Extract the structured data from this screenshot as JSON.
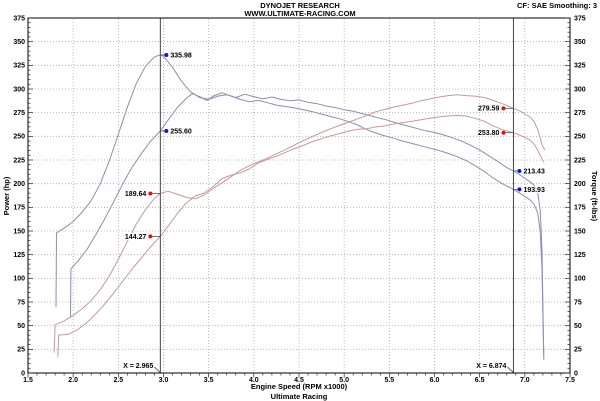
{
  "header": {
    "title_line1": "DYNOJET RESEARCH",
    "title_line2": "WWW.ULTIMATE-RACING.COM",
    "correction_info": "CF: SAE  Smoothing: 3"
  },
  "footer": {
    "brand": "Ultimate Racing"
  },
  "chart_data": {
    "type": "line",
    "xlabel": "Engine Speed (RPM x1000)",
    "ylabel_left": "Power (hp)",
    "ylabel_right": "Torque (ft-lbs)",
    "xlim": [
      1.5,
      7.5
    ],
    "ylim": [
      0,
      375
    ],
    "xtick_step": 0.5,
    "ytick_step": 25,
    "x_minor_step": 0.1,
    "y_minor_step": 5,
    "grid": true,
    "colors": {
      "torque_curve": "#8a8eb2",
      "power_curve": "#c29b97",
      "torque_marker": "#1414cc",
      "power_marker": "#dd1111",
      "grid": "#aaaaaa",
      "cursor": "#444444",
      "spine": "#000000"
    },
    "cursors": [
      {
        "x": 2.965,
        "label": "X = 2.965"
      },
      {
        "x": 6.874,
        "label": "X = 6.874"
      }
    ],
    "markers": [
      {
        "x": 2.965,
        "value": 335.98,
        "label": "335.98",
        "kind": "torque",
        "side": "right"
      },
      {
        "x": 2.965,
        "value": 255.6,
        "label": "255.60",
        "kind": "torque",
        "side": "right"
      },
      {
        "x": 2.965,
        "value": 189.64,
        "label": "189.64",
        "kind": "power",
        "side": "left"
      },
      {
        "x": 2.965,
        "value": 144.27,
        "label": "144.27",
        "kind": "power",
        "side": "left"
      },
      {
        "x": 6.874,
        "value": 279.59,
        "label": "279.59",
        "kind": "power",
        "side": "left"
      },
      {
        "x": 6.874,
        "value": 253.8,
        "label": "253.80",
        "kind": "power",
        "side": "left"
      },
      {
        "x": 6.874,
        "value": 213.43,
        "label": "213.43",
        "kind": "torque",
        "side": "right"
      },
      {
        "x": 6.874,
        "value": 193.93,
        "label": "193.93",
        "kind": "torque",
        "side": "right"
      }
    ],
    "series": [
      {
        "name": "torque-run1",
        "kind": "torque",
        "points": [
          [
            1.81,
            70
          ],
          [
            1.815,
            148
          ],
          [
            1.9,
            153
          ],
          [
            2.0,
            160
          ],
          [
            2.1,
            170
          ],
          [
            2.2,
            182
          ],
          [
            2.3,
            200
          ],
          [
            2.4,
            224
          ],
          [
            2.5,
            252
          ],
          [
            2.6,
            281
          ],
          [
            2.7,
            306
          ],
          [
            2.8,
            324
          ],
          [
            2.9,
            334
          ],
          [
            2.965,
            335.98
          ],
          [
            3.0,
            334.5
          ],
          [
            3.1,
            323
          ],
          [
            3.2,
            308
          ],
          [
            3.3,
            297
          ],
          [
            3.4,
            291
          ],
          [
            3.5,
            289
          ],
          [
            3.6,
            292.5
          ],
          [
            3.7,
            294
          ],
          [
            3.8,
            291
          ],
          [
            3.9,
            294.5
          ],
          [
            4.0,
            292
          ],
          [
            4.1,
            289.5
          ],
          [
            4.2,
            291.5
          ],
          [
            4.3,
            289
          ],
          [
            4.4,
            287.5
          ],
          [
            4.5,
            288.5
          ],
          [
            4.6,
            286
          ],
          [
            4.7,
            284.5
          ],
          [
            4.8,
            282
          ],
          [
            4.9,
            280.5
          ],
          [
            5.0,
            278
          ],
          [
            5.1,
            276.5
          ],
          [
            5.2,
            274
          ],
          [
            5.3,
            271.5
          ],
          [
            5.4,
            269
          ],
          [
            5.5,
            266.5
          ],
          [
            5.6,
            263.5
          ],
          [
            5.7,
            261
          ],
          [
            5.8,
            258.5
          ],
          [
            5.9,
            256
          ],
          [
            6.0,
            254
          ],
          [
            6.1,
            251.5
          ],
          [
            6.2,
            248.5
          ],
          [
            6.3,
            245
          ],
          [
            6.4,
            240.5
          ],
          [
            6.5,
            235.5
          ],
          [
            6.6,
            229.5
          ],
          [
            6.7,
            223.5
          ],
          [
            6.8,
            217
          ],
          [
            6.874,
            213.43
          ],
          [
            6.95,
            209
          ],
          [
            7.05,
            202.5
          ],
          [
            7.1,
            198.5
          ],
          [
            7.14,
            192
          ],
          [
            7.17,
            172
          ],
          [
            7.19,
            130
          ],
          [
            7.2,
            70
          ],
          [
            7.21,
            14
          ]
        ]
      },
      {
        "name": "torque-run2",
        "kind": "torque",
        "points": [
          [
            1.97,
            60
          ],
          [
            1.975,
            110
          ],
          [
            2.05,
            118
          ],
          [
            2.15,
            130
          ],
          [
            2.25,
            146
          ],
          [
            2.35,
            163
          ],
          [
            2.45,
            181
          ],
          [
            2.55,
            200
          ],
          [
            2.65,
            217
          ],
          [
            2.75,
            231
          ],
          [
            2.85,
            244
          ],
          [
            2.965,
            255.6
          ],
          [
            3.05,
            267
          ],
          [
            3.15,
            280
          ],
          [
            3.25,
            290
          ],
          [
            3.32,
            295
          ],
          [
            3.4,
            292
          ],
          [
            3.48,
            288
          ],
          [
            3.56,
            293
          ],
          [
            3.65,
            296
          ],
          [
            3.75,
            292.5
          ],
          [
            3.85,
            289
          ],
          [
            3.95,
            286.5
          ],
          [
            4.05,
            288
          ],
          [
            4.15,
            285.5
          ],
          [
            4.25,
            283
          ],
          [
            4.35,
            281.5
          ],
          [
            4.45,
            280
          ],
          [
            4.55,
            278
          ],
          [
            4.65,
            276
          ],
          [
            4.75,
            273.5
          ],
          [
            4.85,
            271
          ],
          [
            4.95,
            268.5
          ],
          [
            5.05,
            265.5
          ],
          [
            5.15,
            262
          ],
          [
            5.25,
            257
          ],
          [
            5.35,
            253.5
          ],
          [
            5.45,
            250.5
          ],
          [
            5.55,
            248
          ],
          [
            5.65,
            245
          ],
          [
            5.75,
            242.5
          ],
          [
            5.85,
            240
          ],
          [
            5.95,
            237.5
          ],
          [
            6.05,
            235
          ],
          [
            6.15,
            232
          ],
          [
            6.25,
            228.5
          ],
          [
            6.35,
            224.5
          ],
          [
            6.45,
            219
          ],
          [
            6.55,
            213
          ],
          [
            6.65,
            206
          ],
          [
            6.75,
            200
          ],
          [
            6.874,
            193.93
          ],
          [
            6.95,
            189.5
          ],
          [
            7.05,
            183.5
          ],
          [
            7.1,
            178.5
          ],
          [
            7.14,
            170
          ],
          [
            7.17,
            150
          ],
          [
            7.19,
            110
          ],
          [
            7.2,
            60
          ],
          [
            7.21,
            18
          ]
        ]
      },
      {
        "name": "power-run1",
        "kind": "power",
        "points": [
          [
            1.79,
            22
          ],
          [
            1.8,
            51
          ],
          [
            1.9,
            55
          ],
          [
            2.0,
            61
          ],
          [
            2.1,
            68
          ],
          [
            2.2,
            76.5
          ],
          [
            2.3,
            88
          ],
          [
            2.4,
            102.5
          ],
          [
            2.5,
            120
          ],
          [
            2.6,
            139
          ],
          [
            2.7,
            157.5
          ],
          [
            2.8,
            172.5
          ],
          [
            2.9,
            184.5
          ],
          [
            2.965,
            189.64
          ],
          [
            3.05,
            192
          ],
          [
            3.15,
            189
          ],
          [
            3.25,
            185.5
          ],
          [
            3.35,
            184
          ],
          [
            3.45,
            188
          ],
          [
            3.55,
            195
          ],
          [
            3.65,
            201
          ],
          [
            3.75,
            207.5
          ],
          [
            3.85,
            214
          ],
          [
            3.95,
            219
          ],
          [
            4.05,
            223
          ],
          [
            4.15,
            227
          ],
          [
            4.25,
            231.5
          ],
          [
            4.35,
            236
          ],
          [
            4.45,
            241
          ],
          [
            4.55,
            245.5
          ],
          [
            4.65,
            250
          ],
          [
            4.75,
            254
          ],
          [
            4.85,
            258
          ],
          [
            4.95,
            261.5
          ],
          [
            5.05,
            265
          ],
          [
            5.15,
            268.5
          ],
          [
            5.25,
            272
          ],
          [
            5.35,
            276
          ],
          [
            5.45,
            278.5
          ],
          [
            5.55,
            281
          ],
          [
            5.65,
            283
          ],
          [
            5.75,
            285
          ],
          [
            5.85,
            287.5
          ],
          [
            5.95,
            289.5
          ],
          [
            6.05,
            291.5
          ],
          [
            6.15,
            293
          ],
          [
            6.25,
            294
          ],
          [
            6.35,
            293
          ],
          [
            6.45,
            292.5
          ],
          [
            6.55,
            291
          ],
          [
            6.65,
            288
          ],
          [
            6.75,
            284.5
          ],
          [
            6.874,
            279.59
          ],
          [
            6.95,
            276.5
          ],
          [
            7.05,
            271
          ],
          [
            7.1,
            266
          ],
          [
            7.14,
            258
          ],
          [
            7.17,
            248
          ],
          [
            7.19,
            241
          ],
          [
            7.22,
            236
          ]
        ]
      },
      {
        "name": "power-run2",
        "kind": "power",
        "points": [
          [
            1.83,
            17
          ],
          [
            1.84,
            40
          ],
          [
            1.95,
            41
          ],
          [
            2.05,
            46
          ],
          [
            2.15,
            53
          ],
          [
            2.25,
            62.5
          ],
          [
            2.35,
            73
          ],
          [
            2.45,
            84.5
          ],
          [
            2.55,
            97
          ],
          [
            2.65,
            109.5
          ],
          [
            2.75,
            121
          ],
          [
            2.85,
            132.5
          ],
          [
            2.965,
            144.27
          ],
          [
            3.05,
            155
          ],
          [
            3.15,
            168
          ],
          [
            3.25,
            179.5
          ],
          [
            3.35,
            187
          ],
          [
            3.45,
            190
          ],
          [
            3.55,
            197
          ],
          [
            3.65,
            205.5
          ],
          [
            3.75,
            209
          ],
          [
            3.85,
            211.5
          ],
          [
            3.95,
            215.5
          ],
          [
            4.05,
            222
          ],
          [
            4.15,
            225.5
          ],
          [
            4.25,
            229
          ],
          [
            4.35,
            233
          ],
          [
            4.45,
            237
          ],
          [
            4.55,
            240.5
          ],
          [
            4.65,
            244.5
          ],
          [
            4.75,
            247.5
          ],
          [
            4.85,
            250.5
          ],
          [
            4.95,
            253
          ],
          [
            5.05,
            255.5
          ],
          [
            5.15,
            257.5
          ],
          [
            5.25,
            258
          ],
          [
            5.35,
            260
          ],
          [
            5.45,
            261
          ],
          [
            5.55,
            263
          ],
          [
            5.65,
            264.5
          ],
          [
            5.75,
            266
          ],
          [
            5.85,
            267.5
          ],
          [
            5.95,
            269
          ],
          [
            6.05,
            270.5
          ],
          [
            6.15,
            271.5
          ],
          [
            6.25,
            272
          ],
          [
            6.35,
            271.5
          ],
          [
            6.45,
            269
          ],
          [
            6.55,
            266
          ],
          [
            6.65,
            261
          ],
          [
            6.75,
            257
          ],
          [
            6.874,
            253.8
          ],
          [
            6.95,
            251
          ],
          [
            7.05,
            246.5
          ],
          [
            7.1,
            242
          ],
          [
            7.14,
            236
          ],
          [
            7.17,
            230
          ],
          [
            7.19,
            226
          ],
          [
            7.21,
            223
          ]
        ]
      }
    ]
  }
}
